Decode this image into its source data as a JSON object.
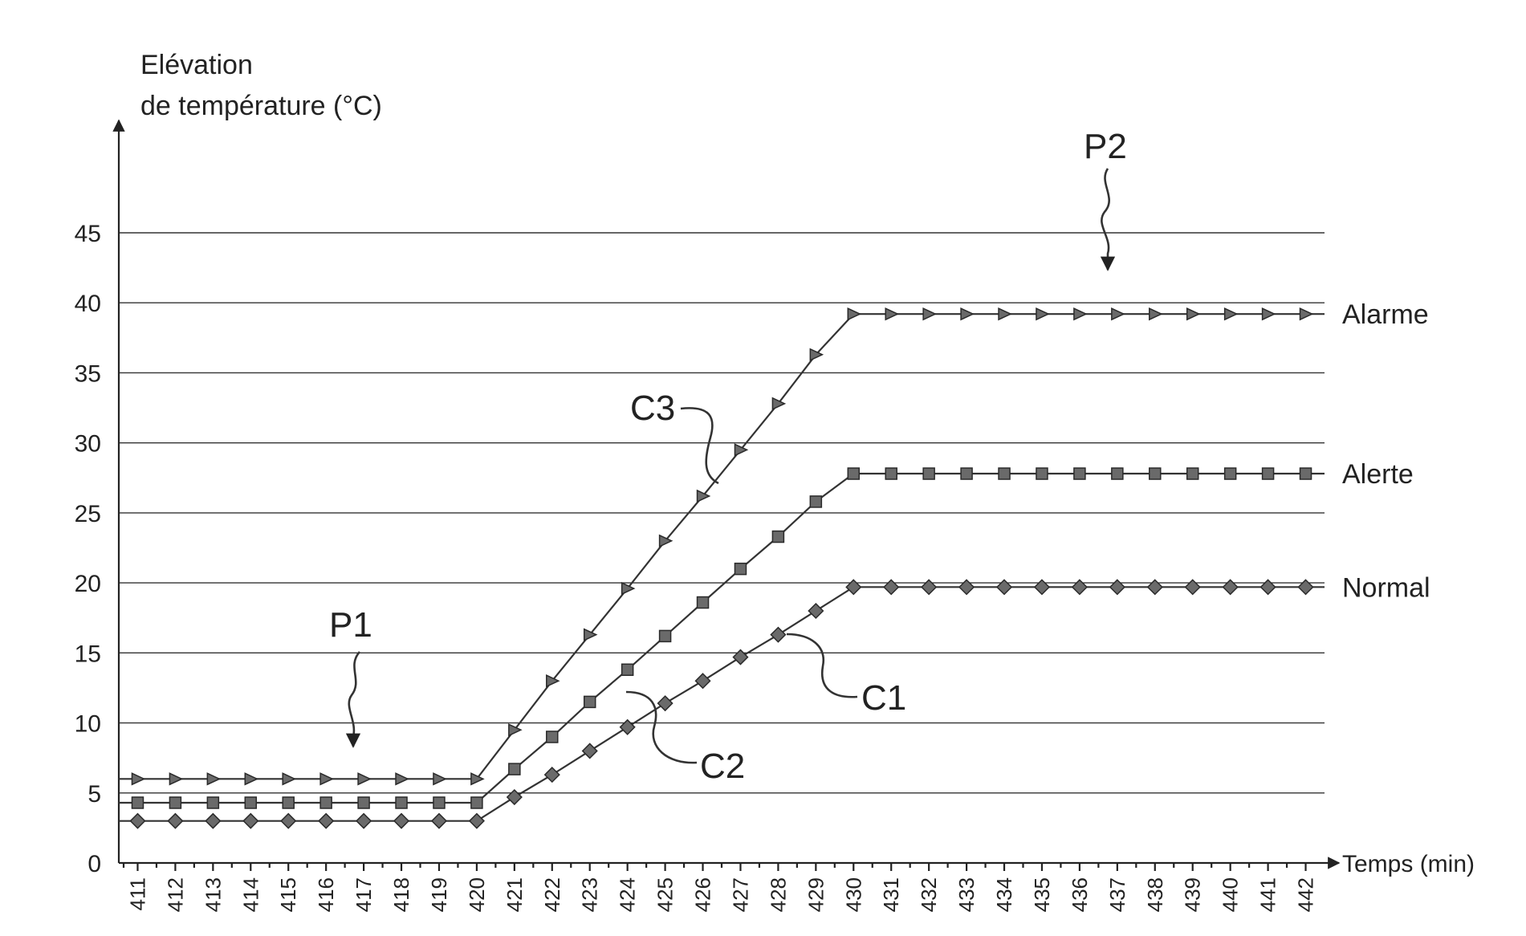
{
  "chart_data": {
    "type": "line",
    "ylabel_lines": [
      "Elévation",
      "de température (°C)"
    ],
    "xlabel": "Temps (min)",
    "x": [
      411,
      412,
      413,
      414,
      415,
      416,
      417,
      418,
      419,
      420,
      421,
      422,
      423,
      424,
      425,
      426,
      427,
      428,
      429,
      430,
      431,
      432,
      433,
      434,
      435,
      436,
      437,
      438,
      439,
      440,
      441,
      442
    ],
    "xlim": [
      410.5,
      442.5
    ],
    "ylim": [
      0,
      50
    ],
    "yticks": [
      0,
      5,
      10,
      15,
      20,
      25,
      30,
      35,
      40,
      45
    ],
    "grid_y": true,
    "series": [
      {
        "name": "C3",
        "marker": "triangle",
        "values": [
          6,
          6,
          6,
          6,
          6,
          6,
          6,
          6,
          6,
          6,
          9.5,
          13,
          16.3,
          19.6,
          23,
          26.2,
          29.5,
          32.8,
          36.3,
          39.2,
          39.2,
          39.2,
          39.2,
          39.2,
          39.2,
          39.2,
          39.2,
          39.2,
          39.2,
          39.2,
          39.2,
          39.2
        ]
      },
      {
        "name": "C2",
        "marker": "square",
        "values": [
          4.3,
          4.3,
          4.3,
          4.3,
          4.3,
          4.3,
          4.3,
          4.3,
          4.3,
          4.3,
          6.7,
          9,
          11.5,
          13.8,
          16.2,
          18.6,
          21,
          23.3,
          25.8,
          27.8,
          27.8,
          27.8,
          27.8,
          27.8,
          27.8,
          27.8,
          27.8,
          27.8,
          27.8,
          27.8,
          27.8,
          27.8
        ]
      },
      {
        "name": "C1",
        "marker": "diamond",
        "values": [
          3,
          3,
          3,
          3,
          3,
          3,
          3,
          3,
          3,
          3,
          4.7,
          6.3,
          8,
          9.7,
          11.4,
          13,
          14.7,
          16.3,
          18,
          19.7,
          19.7,
          19.7,
          19.7,
          19.7,
          19.7,
          19.7,
          19.7,
          19.7,
          19.7,
          19.7,
          19.7,
          19.7
        ]
      }
    ],
    "right_labels": [
      {
        "text": "Alarme",
        "series": "C3"
      },
      {
        "text": "Alerte",
        "series": "C2"
      },
      {
        "text": "Normal",
        "series": "C1"
      }
    ],
    "annotations": [
      "P1",
      "P2",
      "C1",
      "C2",
      "C3"
    ]
  }
}
